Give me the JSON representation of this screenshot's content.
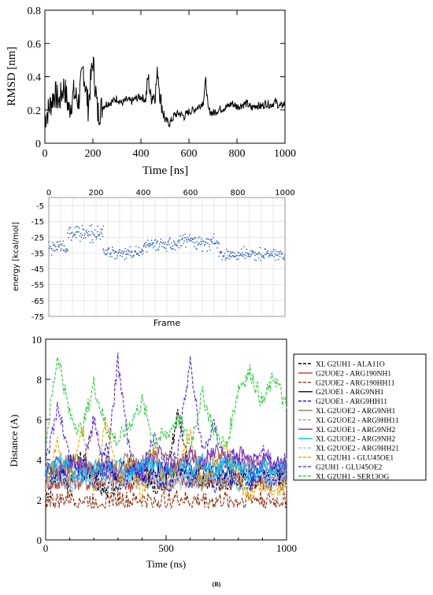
{
  "caption": "(B)",
  "chart_data": [
    {
      "type": "line",
      "xlabel": "Time [ns]",
      "ylabel": "RMSD [nm]",
      "xlim": [
        0,
        1000
      ],
      "ylim": [
        0,
        0.8
      ],
      "xticks": [
        "0",
        "200",
        "400",
        "600",
        "800",
        "1000"
      ],
      "yticks": [
        "0",
        "0.2",
        "0.4",
        "0.6",
        "0.8"
      ],
      "series": [
        {
          "color": "#000000",
          "x": [
            0,
            20,
            40,
            60,
            80,
            100,
            120,
            140,
            160,
            180,
            200,
            220,
            240,
            260,
            280,
            300,
            320,
            340,
            360,
            380,
            400,
            420,
            430,
            440,
            460,
            470,
            480,
            500,
            520,
            540,
            560,
            580,
            600,
            620,
            640,
            660,
            670,
            680,
            700,
            720,
            740,
            760,
            780,
            800,
            820,
            840,
            860,
            880,
            900,
            920,
            940,
            960,
            980,
            1000
          ],
          "values": [
            0.15,
            0.22,
            0.3,
            0.25,
            0.35,
            0.2,
            0.3,
            0.25,
            0.45,
            0.22,
            0.5,
            0.18,
            0.22,
            0.24,
            0.25,
            0.27,
            0.24,
            0.26,
            0.25,
            0.27,
            0.28,
            0.26,
            0.4,
            0.28,
            0.3,
            0.44,
            0.28,
            0.14,
            0.12,
            0.17,
            0.18,
            0.16,
            0.19,
            0.2,
            0.22,
            0.25,
            0.38,
            0.2,
            0.18,
            0.2,
            0.21,
            0.22,
            0.24,
            0.22,
            0.23,
            0.24,
            0.21,
            0.23,
            0.22,
            0.24,
            0.23,
            0.25,
            0.22,
            0.24
          ]
        }
      ]
    },
    {
      "type": "scatter",
      "xlabel": "Frame",
      "ylabel": "energy [kcal/mol]",
      "xlim": [
        0,
        1000
      ],
      "ylim": [
        -75,
        0
      ],
      "xticks": [
        "0",
        "200",
        "400",
        "600",
        "800",
        "1000"
      ],
      "yticks": [
        "-5",
        "-15",
        "-25",
        "-35",
        "-45",
        "-55",
        "-65",
        "-75"
      ],
      "grid": true,
      "color": "#4472c4",
      "segments": [
        {
          "x_start": 0,
          "x_end": 80,
          "mean": -31,
          "spread": 5
        },
        {
          "x_start": 80,
          "x_end": 230,
          "mean": -23,
          "spread": 6
        },
        {
          "x_start": 230,
          "x_end": 400,
          "mean": -35,
          "spread": 4
        },
        {
          "x_start": 400,
          "x_end": 530,
          "mean": -30,
          "spread": 5
        },
        {
          "x_start": 530,
          "x_end": 720,
          "mean": -28,
          "spread": 5
        },
        {
          "x_start": 720,
          "x_end": 1000,
          "mean": -36,
          "spread": 4
        }
      ]
    },
    {
      "type": "line",
      "xlabel": "Time (ns)",
      "ylabel": "Distance (A)",
      "xlim": [
        0,
        1000
      ],
      "ylim": [
        0,
        10
      ],
      "xticks": [
        "0",
        "500",
        "1000"
      ],
      "yticks": [
        "0",
        "2",
        "4",
        "6",
        "8",
        "10"
      ],
      "legend_position": "right",
      "series": [
        {
          "name": "XL G2UH1 - ALA11O",
          "color": "#000000",
          "dash": true,
          "values": [
            2.2,
            3.1,
            2.6,
            4.2,
            3.0,
            2.4,
            2.9,
            3.3,
            3.8,
            2.6,
            3.0,
            6.5,
            3.1,
            2.8,
            3.0,
            2.7,
            3.2,
            3.0,
            2.9,
            3.1,
            3.0
          ]
        },
        {
          "name": "G2UOE2 - ARG190NH1",
          "color": "#c0392b",
          "dash": false,
          "values": [
            2.9,
            2.8,
            3.0,
            2.9,
            2.8,
            3.0,
            2.9,
            2.8,
            2.9,
            3.0,
            2.8,
            2.9,
            3.0,
            2.9,
            2.8,
            2.9,
            3.0,
            2.8,
            2.9,
            2.8,
            2.9
          ]
        },
        {
          "name": "G2UOE2 - ARG190HH11",
          "color": "#8b2d0e",
          "dash": true,
          "values": [
            2.0,
            1.9,
            2.1,
            2.0,
            1.9,
            2.0,
            2.1,
            1.9,
            2.0,
            1.9,
            2.0,
            2.1,
            1.9,
            2.0,
            1.9,
            2.0,
            1.9,
            2.1,
            2.0,
            1.9,
            2.0
          ]
        },
        {
          "name": "G2UOE1 - ARG9NH1",
          "color": "#00008b",
          "dash": false,
          "values": [
            3.5,
            3.2,
            3.9,
            3.4,
            3.1,
            3.6,
            3.3,
            3.8,
            3.2,
            3.5,
            3.4,
            3.6,
            3.3,
            3.5,
            3.2,
            3.4,
            3.6,
            3.3,
            3.5,
            3.4,
            3.5
          ]
        },
        {
          "name": "G2UOE1 - ARG9HH11",
          "color": "#0000cd",
          "dash": true,
          "values": [
            2.8,
            3.5,
            2.6,
            3.9,
            2.9,
            4.5,
            2.7,
            3.3,
            2.9,
            3.1,
            2.6,
            3.4,
            2.9,
            3.6,
            2.7,
            3.2,
            3.0,
            2.8,
            3.1,
            2.9,
            3.0
          ]
        },
        {
          "name": "XL G2UOE2 - ARG9NH1",
          "color": "#a08070",
          "dash": false,
          "values": [
            3.6,
            3.4,
            4.0,
            3.7,
            3.5,
            3.9,
            3.6,
            4.2,
            3.8,
            4.4,
            4.0,
            3.7,
            4.1,
            3.8,
            4.0,
            3.6,
            3.9,
            3.7,
            3.8,
            3.6,
            3.7
          ]
        },
        {
          "name": "XL G2UOE2 - ARG9HH11",
          "color": "#a0a0a0",
          "dash": true,
          "values": [
            3.0,
            3.4,
            2.8,
            3.6,
            3.1,
            3.3,
            2.9,
            3.5,
            3.2,
            3.0,
            3.3,
            3.1,
            3.4,
            3.0,
            3.2,
            2.9,
            3.1,
            3.3,
            3.0,
            3.2,
            3.1
          ]
        },
        {
          "name": "XL G2UOE1 - ARG9NH2",
          "color": "#7b2fbe",
          "dash": false,
          "values": [
            3.2,
            3.8,
            3.4,
            4.1,
            3.5,
            3.9,
            3.3,
            3.7,
            3.6,
            4.0,
            3.4,
            3.8,
            4.2,
            3.9,
            4.5,
            4.1,
            4.3,
            3.9,
            4.0,
            3.7,
            3.8
          ]
        },
        {
          "name": "XL G2UOE2 - ARG9NH2",
          "color": "#00bfff",
          "dash": false,
          "values": [
            3.3,
            3.9,
            3.5,
            3.1,
            3.7,
            3.4,
            3.8,
            3.2,
            3.6,
            3.9,
            3.3,
            3.7,
            3.5,
            3.9,
            3.4,
            3.8,
            3.6,
            3.3,
            3.7,
            3.5,
            3.6
          ]
        },
        {
          "name": "XL G2UOE2 - ARG9HH21",
          "color": "#87ceeb",
          "dash": true,
          "values": [
            2.7,
            3.0,
            2.8,
            3.1,
            2.9,
            2.7,
            3.0,
            2.8,
            2.9,
            3.1,
            2.7,
            2.9,
            3.0,
            2.8,
            3.0,
            2.9,
            2.8,
            3.0,
            2.9,
            2.8,
            2.9
          ]
        },
        {
          "name": "XL G2UH1 - GLU45OE1",
          "color": "#e6a800",
          "dash": true,
          "values": [
            2.5,
            4.8,
            2.9,
            5.6,
            2.4,
            6.1,
            3.0,
            3.8,
            2.2,
            4.5,
            2.7,
            3.5,
            5.3,
            2.6,
            3.9,
            4.6,
            2.8,
            2.3,
            2.7,
            2.5,
            2.6
          ]
        },
        {
          "name": "G2UH1 - GLU45OE2",
          "color": "#5c2fd6",
          "dash": true,
          "values": [
            3.6,
            6.8,
            4.0,
            3.5,
            6.0,
            3.2,
            8.9,
            4.1,
            3.3,
            5.2,
            3.8,
            4.6,
            9.0,
            4.4,
            5.8,
            3.9,
            4.2,
            3.1,
            4.5,
            3.7,
            4.0
          ]
        },
        {
          "name": "XL G2UH1 - SER13OG",
          "color": "#2ecc40",
          "dash": true,
          "values": [
            4.8,
            9.3,
            6.2,
            5.4,
            7.8,
            5.6,
            4.9,
            5.8,
            6.9,
            5.0,
            5.2,
            6.1,
            4.7,
            7.3,
            5.4,
            4.6,
            7.6,
            8.4,
            6.8,
            8.2,
            6.5
          ]
        }
      ]
    }
  ]
}
